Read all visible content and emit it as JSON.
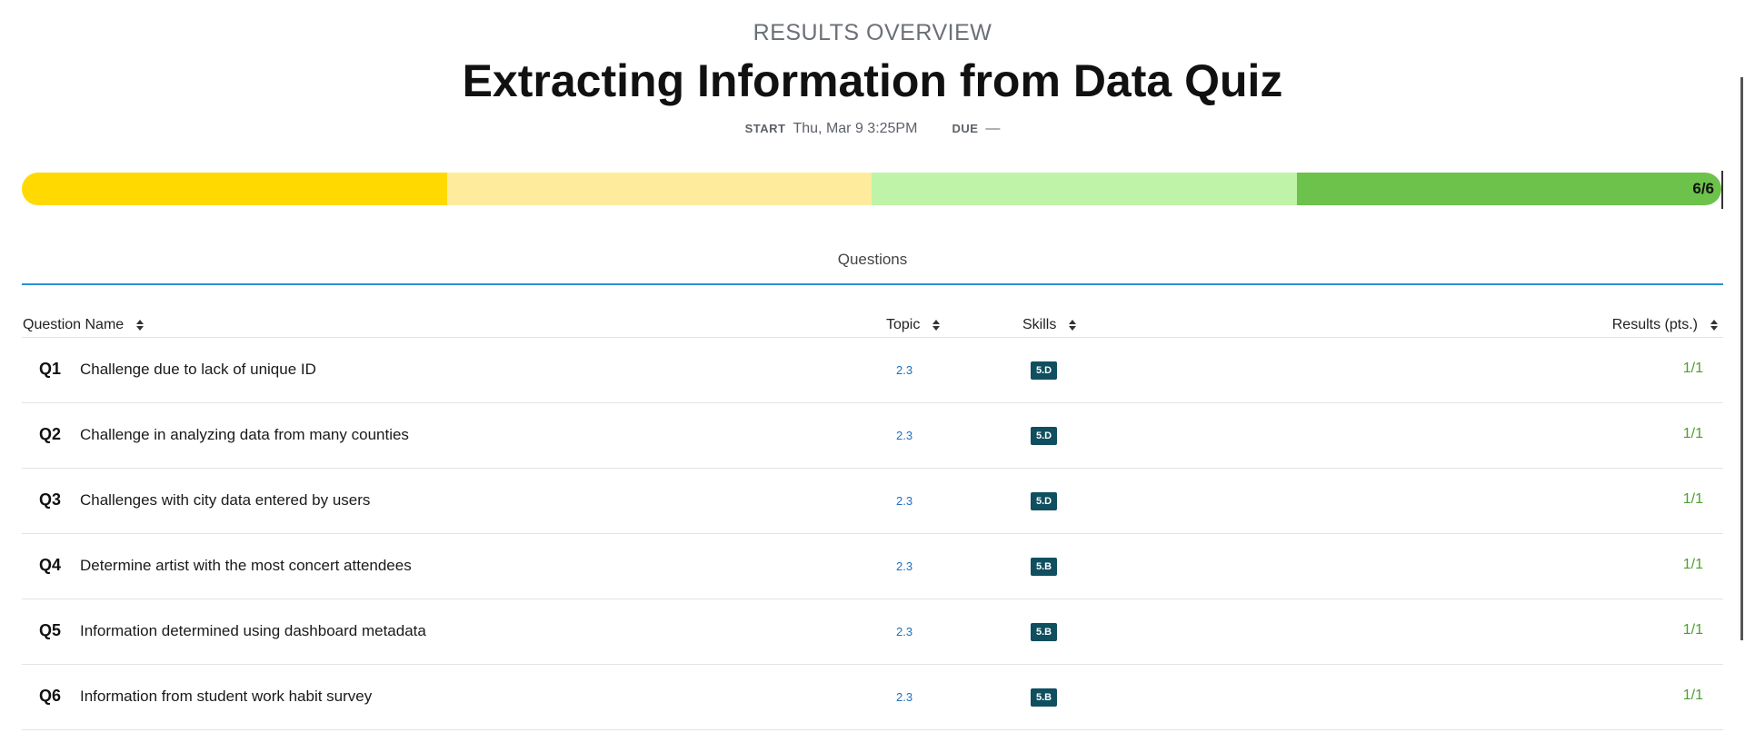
{
  "header": {
    "eyebrow": "RESULTS OVERVIEW",
    "title": "Extracting Information from Data Quiz",
    "start_label": "START",
    "start_value": "Thu, Mar 9 3:25PM",
    "due_label": "DUE",
    "due_value": "—"
  },
  "progress": {
    "label": "6/6",
    "fraction": 1.0,
    "segment_colors": [
      "#ffd900",
      "#ffeb9c",
      "#bff4a8",
      "#6cc24a"
    ]
  },
  "tabs": {
    "questions_label": "Questions"
  },
  "table": {
    "columns": {
      "name": "Question Name",
      "topic": "Topic",
      "skills": "Skills",
      "results": "Results (pts.)"
    },
    "rows": [
      {
        "num": "Q1",
        "name": "Challenge due to lack of unique ID",
        "topic": "2.3",
        "skill": "5.D",
        "score": "1/1"
      },
      {
        "num": "Q2",
        "name": "Challenge in analyzing data from many counties",
        "topic": "2.3",
        "skill": "5.D",
        "score": "1/1"
      },
      {
        "num": "Q3",
        "name": "Challenges with city data entered by users",
        "topic": "2.3",
        "skill": "5.D",
        "score": "1/1"
      },
      {
        "num": "Q4",
        "name": "Determine artist with the most concert attendees",
        "topic": "2.3",
        "skill": "5.B",
        "score": "1/1"
      },
      {
        "num": "Q5",
        "name": "Information determined using dashboard metadata",
        "topic": "2.3",
        "skill": "5.B",
        "score": "1/1"
      },
      {
        "num": "Q6",
        "name": "Information from student work habit survey",
        "topic": "2.3",
        "skill": "5.B",
        "score": "1/1"
      }
    ]
  },
  "icons": {
    "sort": "sort-icon"
  }
}
